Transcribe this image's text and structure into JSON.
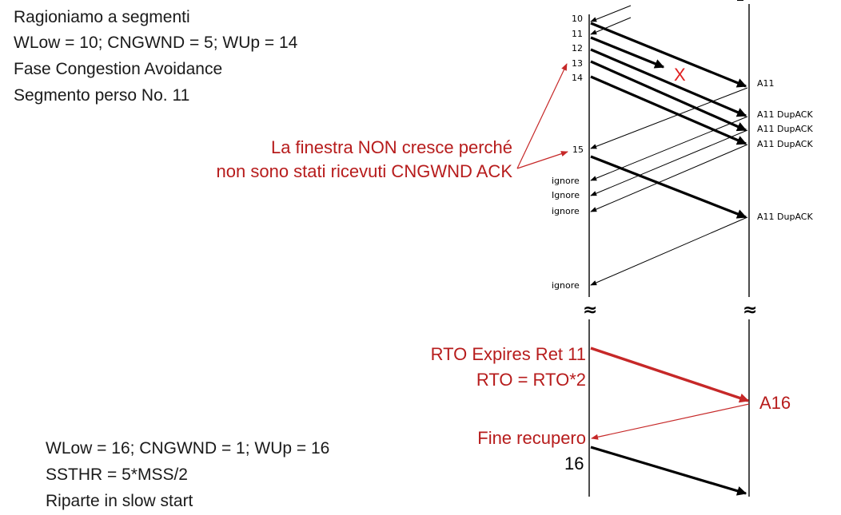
{
  "left_top": {
    "line1": "Ragioniamo a segmenti",
    "line2": "WLow = 10; CNGWND = 5; WUp = 14",
    "line3": "Fase Congestion Avoidance",
    "line4": "Segmento perso No. 11"
  },
  "left_bottom": {
    "line1": "WLow = 16; CNGWND = 1; WUp = 16",
    "line2": "SSTHR = 5*MSS/2",
    "line3": "Riparte in slow start"
  },
  "note_window": {
    "line1": "La finestra NON cresce perché",
    "line2": "non sono stati ricevuti CNGWND ACK"
  },
  "rto": {
    "line1": "RTO Expires Ret 11",
    "line2": "RTO = RTO*2"
  },
  "end_recovery": "Fine recupero",
  "sender_labels": {
    "s10": "10",
    "s11": "11",
    "s12": "12",
    "s13": "13",
    "s14": "14",
    "s15": "15",
    "ignore1": "ignore",
    "ignore2": "Ignore",
    "ignore3": "ignore",
    "ignore4": "ignore",
    "s16": "16"
  },
  "receiver_labels": {
    "a1": "A11",
    "a2": "A11 DupACK",
    "a3": "A11 DupACK",
    "a4": "A11 DupACK",
    "a5": "A11 DupACK",
    "a16": "A16"
  },
  "loss_mark": "X",
  "break_mark": "≈",
  "colors": {
    "red": "#b71c1c",
    "loss": "#e02020",
    "line": "#000000"
  }
}
